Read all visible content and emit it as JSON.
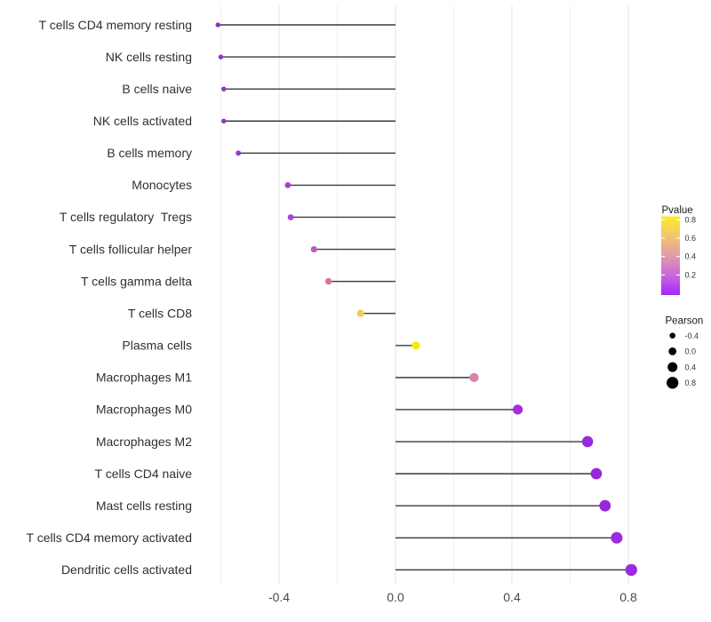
{
  "chart_data": {
    "type": "scatter",
    "subtype": "lollipop",
    "orientation": "horizontal",
    "title": "",
    "xlabel": "",
    "ylabel": "",
    "xlim": [
      -0.68,
      0.88
    ],
    "baseline_x": 0.0,
    "grid": "vertical-only",
    "x_ticks": [
      -0.4,
      0.0,
      0.4,
      0.8
    ],
    "x_tick_labels": [
      "-0.4",
      "0.0",
      "0.4",
      "0.8"
    ],
    "x_minor_ticks": [
      -0.6,
      -0.2,
      0.2,
      0.6
    ],
    "categories": [
      "T cells CD4 memory resting",
      "NK cells resting",
      "B cells naive",
      "NK cells activated",
      "B cells memory",
      "Monocytes",
      "T cells regulatory  Tregs",
      "T cells follicular helper",
      "T cells gamma delta",
      "T cells CD8",
      "Plasma cells",
      "Macrophages M1",
      "Macrophages M0",
      "Macrophages M2",
      "T cells CD4 naive",
      "Mast cells resting",
      "T cells CD4 memory activated",
      "Dendritic cells activated"
    ],
    "points": [
      {
        "label": "T cells CD4 memory resting",
        "pearson": -0.61,
        "pvalue": 0.05,
        "color": "#8E34C8"
      },
      {
        "label": "NK cells resting",
        "pearson": -0.6,
        "pvalue": 0.05,
        "color": "#8E34C8"
      },
      {
        "label": "B cells naive",
        "pearson": -0.59,
        "pvalue": 0.06,
        "color": "#9135CB"
      },
      {
        "label": "NK cells activated",
        "pearson": -0.59,
        "pvalue": 0.06,
        "color": "#9135CB"
      },
      {
        "label": "B cells memory",
        "pearson": -0.54,
        "pvalue": 0.08,
        "color": "#9C35D2"
      },
      {
        "label": "Monocytes",
        "pearson": -0.37,
        "pvalue": 0.14,
        "color": "#AB3DD2"
      },
      {
        "label": "T cells regulatory  Tregs",
        "pearson": -0.36,
        "pvalue": 0.15,
        "color": "#AC43D1"
      },
      {
        "label": "T cells follicular helper",
        "pearson": -0.28,
        "pvalue": 0.27,
        "color": "#C15CB7"
      },
      {
        "label": "T cells gamma delta",
        "pearson": -0.23,
        "pvalue": 0.38,
        "color": "#D4789B"
      },
      {
        "label": "T cells CD8",
        "pearson": -0.12,
        "pvalue": 0.67,
        "color": "#F2CB52"
      },
      {
        "label": "Plasma cells",
        "pearson": 0.07,
        "pvalue": 0.82,
        "color": "#F5EB0F"
      },
      {
        "label": "Macrophages M1",
        "pearson": 0.27,
        "pvalue": 0.42,
        "color": "#D983AB"
      },
      {
        "label": "Macrophages M0",
        "pearson": 0.42,
        "pvalue": 0.11,
        "color": "#A92BDE"
      },
      {
        "label": "Macrophages M2",
        "pearson": 0.66,
        "pvalue": 0.02,
        "color": "#9829DC"
      },
      {
        "label": "T cells CD4 naive",
        "pearson": 0.69,
        "pvalue": 0.02,
        "color": "#9829DC"
      },
      {
        "label": "Mast cells resting",
        "pearson": 0.72,
        "pvalue": 0.02,
        "color": "#9829DC"
      },
      {
        "label": "T cells CD4 memory activated",
        "pearson": 0.76,
        "pvalue": 0.01,
        "color": "#9A2BE0"
      },
      {
        "label": "Dendritic cells activated",
        "pearson": 0.81,
        "pvalue": 0.01,
        "color": "#9A2BE0"
      }
    ],
    "legend": {
      "position": "right",
      "color_legend": {
        "title": "Pvalue",
        "tick_labels": [
          "0.8",
          "0.6",
          "0.4",
          "0.2"
        ],
        "tick_values": [
          0.8,
          0.6,
          0.4,
          0.2
        ],
        "range": [
          0.0,
          0.83
        ],
        "gradient_top_to_bottom": [
          "#FAEE2C",
          "#F3C46E",
          "#E29BA9",
          "#C868DC",
          "#A824FA"
        ]
      },
      "size_legend": {
        "title": "Pearson",
        "entries": [
          {
            "label": "-0.4",
            "value": -0.4
          },
          {
            "label": "0.0",
            "value": 0.0
          },
          {
            "label": "0.4",
            "value": 0.4
          },
          {
            "label": "0.8",
            "value": 0.8
          }
        ],
        "dot_color": "#000000"
      }
    }
  },
  "colors": {
    "background": "#ffffff",
    "grid_major": "#e6e6e6",
    "grid_minor": "#f0f0f0",
    "stem": "#3a3a3a",
    "y_axis_text": "#303030",
    "x_axis_text": "#4a4a4a",
    "legend_title_text": "#1a1a1a",
    "legend_tick_text": "#333333"
  }
}
